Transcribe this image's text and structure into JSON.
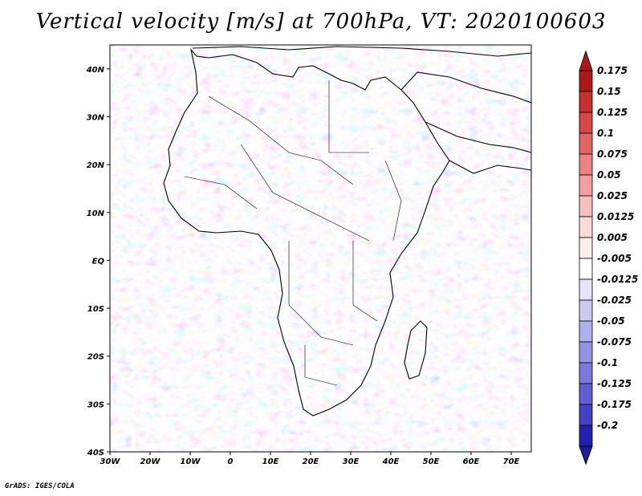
{
  "title": "Vertical velocity [m/s] at 700hPa, VT: 2020100603",
  "credit": "GrADS: IGES/COLA",
  "map": {
    "lon_range": [
      -30,
      75
    ],
    "lat_range": [
      -40,
      45
    ],
    "lon_ticks": [
      {
        "value": -30,
        "label": "30W"
      },
      {
        "value": -20,
        "label": "20W"
      },
      {
        "value": -10,
        "label": "10W"
      },
      {
        "value": 0,
        "label": "0"
      },
      {
        "value": 10,
        "label": "10E"
      },
      {
        "value": 20,
        "label": "20E"
      },
      {
        "value": 30,
        "label": "30E"
      },
      {
        "value": 40,
        "label": "40E"
      },
      {
        "value": 50,
        "label": "50E"
      },
      {
        "value": 60,
        "label": "60E"
      },
      {
        "value": 70,
        "label": "70E"
      }
    ],
    "lat_ticks": [
      {
        "value": 40,
        "label": "40N"
      },
      {
        "value": 30,
        "label": "30N"
      },
      {
        "value": 20,
        "label": "20N"
      },
      {
        "value": 10,
        "label": "10N"
      },
      {
        "value": 0,
        "label": "EQ"
      },
      {
        "value": -10,
        "label": "10S"
      },
      {
        "value": -20,
        "label": "20S"
      },
      {
        "value": -30,
        "label": "30S"
      },
      {
        "value": -40,
        "label": "40S"
      }
    ]
  },
  "colorbar": {
    "levels": [
      {
        "label": "0.175",
        "color": "#b01818"
      },
      {
        "label": "0.15",
        "color": "#c83030"
      },
      {
        "label": "0.125",
        "color": "#d84848"
      },
      {
        "label": "0.1",
        "color": "#e46464"
      },
      {
        "label": "0.075",
        "color": "#ec8282"
      },
      {
        "label": "0.05",
        "color": "#f2a0a0"
      },
      {
        "label": "0.025",
        "color": "#f7bebe"
      },
      {
        "label": "0.0125",
        "color": "#fbdada"
      },
      {
        "label": "0.005",
        "color": "#fdeeee"
      },
      {
        "label": "-0.005",
        "color": "#ffffff"
      },
      {
        "label": "-0.0125",
        "color": "#e4e4fa"
      },
      {
        "label": "-0.025",
        "color": "#cacaf4"
      },
      {
        "label": "-0.05",
        "color": "#b0b0ee"
      },
      {
        "label": "-0.075",
        "color": "#9494e6"
      },
      {
        "label": "-0.1",
        "color": "#7a7ade"
      },
      {
        "label": "-0.125",
        "color": "#5e5ed2"
      },
      {
        "label": "-0.175",
        "color": "#4242c4"
      },
      {
        "label": "-0.2",
        "color": "#2222b2"
      }
    ],
    "top_color": "#b01818",
    "bottom_color": "#1e1e9c"
  }
}
